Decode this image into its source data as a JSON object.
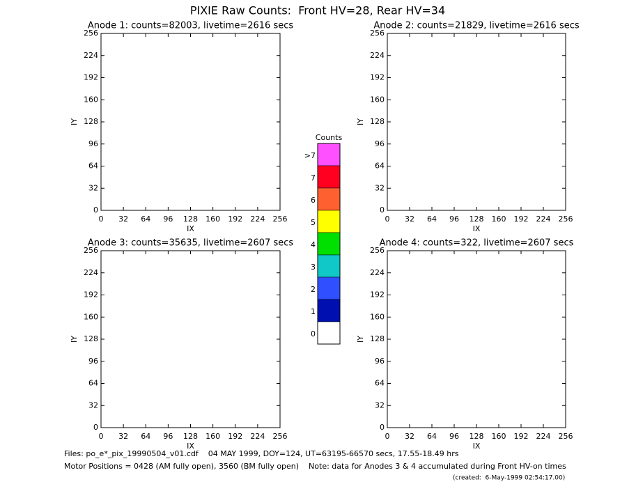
{
  "title": "PIXIE Raw Counts:  Front HV=28, Rear HV=34",
  "chart_data": [
    {
      "type": "heatmap",
      "title": "Anode 1: counts=82003, livetime=2616 secs",
      "xlabel": "IX",
      "ylabel": "IY",
      "xlim": [
        0,
        256
      ],
      "ylim": [
        0,
        256
      ],
      "xticks": [
        0,
        32,
        64,
        96,
        128,
        160,
        192,
        224,
        256
      ],
      "yticks": [
        0,
        32,
        64,
        96,
        128,
        160,
        192,
        224,
        256
      ]
    },
    {
      "type": "heatmap",
      "title": "Anode 2: counts=21829, livetime=2616 secs",
      "xlabel": "IX",
      "ylabel": "IY",
      "xlim": [
        0,
        256
      ],
      "ylim": [
        0,
        256
      ],
      "xticks": [
        0,
        32,
        64,
        96,
        128,
        160,
        192,
        224,
        256
      ],
      "yticks": [
        0,
        32,
        64,
        96,
        128,
        160,
        192,
        224,
        256
      ]
    },
    {
      "type": "heatmap",
      "title": "Anode 3: counts=35635, livetime=2607 secs",
      "xlabel": "IX",
      "ylabel": "IY",
      "xlim": [
        0,
        256
      ],
      "ylim": [
        0,
        256
      ],
      "xticks": [
        0,
        32,
        64,
        96,
        128,
        160,
        192,
        224,
        256
      ],
      "yticks": [
        0,
        32,
        64,
        96,
        128,
        160,
        192,
        224,
        256
      ]
    },
    {
      "type": "heatmap",
      "title": "Anode 4: counts=322, livetime=2607 secs",
      "xlabel": "IX",
      "ylabel": "IY",
      "xlim": [
        0,
        256
      ],
      "ylim": [
        0,
        256
      ],
      "xticks": [
        0,
        32,
        64,
        96,
        128,
        160,
        192,
        224,
        256
      ],
      "yticks": [
        0,
        32,
        64,
        96,
        128,
        160,
        192,
        224,
        256
      ]
    }
  ],
  "colorbar": {
    "title": "Counts",
    "labels": [
      ">7",
      "7",
      "6",
      "5",
      "4",
      "3",
      "2",
      "1",
      "0"
    ],
    "colors": [
      "#ff50ff",
      "#ff0020",
      "#ff6030",
      "#ffff00",
      "#00e000",
      "#10c8c8",
      "#3050ff",
      "#0010b0",
      "#ffffff"
    ]
  },
  "footer": {
    "files": "Files: po_e*_pix_19990504_v01.cdf    04 MAY 1999, DOY=124, UT=63195-66570 secs, 17.55-18.49 hrs",
    "motor": "Motor Positions = 0428 (AM fully open), 3560 (BM fully open)    Note: data for Anodes 3 & 4 accumulated during Front HV-on times",
    "created": "(created:  6-May-1999 02:54:17.00)"
  }
}
